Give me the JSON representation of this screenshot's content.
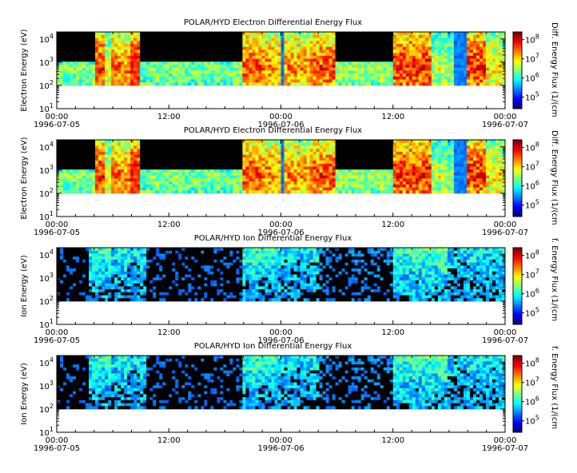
{
  "chart_data": [
    {
      "type": "heatmap",
      "title": "POLAR/HYD  Electron Differential Energy Flux",
      "ylabel": "Electron Energy (eV)",
      "colorbar_label": "Diff. Energy Flux (1/(cm",
      "species": "electron",
      "y_scale": "log",
      "ylim": [
        10,
        20000
      ],
      "data_ylim": [
        100,
        20000
      ],
      "y_ticks": [
        {
          "base": "10",
          "exp": "1"
        },
        {
          "base": "10",
          "exp": "2"
        },
        {
          "base": "10",
          "exp": "3"
        },
        {
          "base": "10",
          "exp": "4"
        }
      ],
      "cbar_scale": "log",
      "cbar_ticks": [
        {
          "base": "10",
          "exp": "5"
        },
        {
          "base": "10",
          "exp": "6"
        },
        {
          "base": "10",
          "exp": "7"
        },
        {
          "base": "10",
          "exp": "8"
        }
      ],
      "x_ticks": [
        "00:00",
        "12:00",
        "00:00",
        "12:00",
        "00:00"
      ],
      "x_dates": [
        "1996-07-05",
        "1996-07-06",
        "1996-07-07"
      ],
      "xlim_hours": [
        0,
        48
      ],
      "activity": [
        {
          "start": 0,
          "end": 4,
          "level": 0.42
        },
        {
          "start": 4,
          "end": 5,
          "level": 0.85
        },
        {
          "start": 5,
          "end": 6,
          "level": 0.55
        },
        {
          "start": 6,
          "end": 8,
          "level": 0.75
        },
        {
          "start": 8,
          "end": 9,
          "level": 0.9
        },
        {
          "start": 9,
          "end": 20,
          "level": 0.4
        },
        {
          "start": 20,
          "end": 22,
          "level": 0.8
        },
        {
          "start": 22,
          "end": 27,
          "level": 0.72
        },
        {
          "start": 27,
          "end": 30,
          "level": 0.8
        },
        {
          "start": 30,
          "end": 36,
          "level": 0.45
        },
        {
          "start": 36,
          "end": 40,
          "level": 0.85
        },
        {
          "start": 40,
          "end": 44,
          "level": 0.5
        },
        {
          "start": 44,
          "end": 46,
          "level": 0.85
        },
        {
          "start": 46,
          "end": 48,
          "level": 0.6
        }
      ],
      "gaps": [
        {
          "start": 7.1,
          "end": 7.3
        },
        {
          "start": 24,
          "end": 24.3
        },
        {
          "start": 42.5,
          "end": 43.8
        }
      ]
    },
    {
      "type": "heatmap",
      "title": "POLAR/HYD  Electron Differential Energy Flux",
      "ylabel": "Electron Energy (eV)",
      "colorbar_label": "Diff. Energy Flux (1/(cm",
      "species": "electron",
      "y_scale": "log",
      "ylim": [
        10,
        20000
      ],
      "data_ylim": [
        100,
        20000
      ],
      "y_ticks": [
        {
          "base": "10",
          "exp": "1"
        },
        {
          "base": "10",
          "exp": "2"
        },
        {
          "base": "10",
          "exp": "3"
        },
        {
          "base": "10",
          "exp": "4"
        }
      ],
      "cbar_scale": "log",
      "cbar_ticks": [
        {
          "base": "10",
          "exp": "5"
        },
        {
          "base": "10",
          "exp": "6"
        },
        {
          "base": "10",
          "exp": "7"
        },
        {
          "base": "10",
          "exp": "8"
        }
      ],
      "x_ticks": [
        "00:00",
        "12:00",
        "00:00",
        "12:00",
        "00:00"
      ],
      "x_dates": [
        "1996-07-05",
        "1996-07-06",
        "1996-07-07"
      ],
      "xlim_hours": [
        0,
        48
      ],
      "activity": [
        {
          "start": 0,
          "end": 4,
          "level": 0.42
        },
        {
          "start": 4,
          "end": 5,
          "level": 0.85
        },
        {
          "start": 5,
          "end": 6,
          "level": 0.55
        },
        {
          "start": 6,
          "end": 8,
          "level": 0.75
        },
        {
          "start": 8,
          "end": 9,
          "level": 0.9
        },
        {
          "start": 9,
          "end": 20,
          "level": 0.4
        },
        {
          "start": 20,
          "end": 22,
          "level": 0.8
        },
        {
          "start": 22,
          "end": 27,
          "level": 0.72
        },
        {
          "start": 27,
          "end": 30,
          "level": 0.8
        },
        {
          "start": 30,
          "end": 36,
          "level": 0.45
        },
        {
          "start": 36,
          "end": 40,
          "level": 0.85
        },
        {
          "start": 40,
          "end": 44,
          "level": 0.5
        },
        {
          "start": 44,
          "end": 46,
          "level": 0.85
        },
        {
          "start": 46,
          "end": 48,
          "level": 0.6
        }
      ],
      "gaps": [
        {
          "start": 7.1,
          "end": 7.3
        },
        {
          "start": 24,
          "end": 24.3
        },
        {
          "start": 42.5,
          "end": 43.8
        }
      ]
    },
    {
      "type": "heatmap",
      "title": "POLAR/HYD  Ion Differential Energy Flux",
      "ylabel": "Ion Energy (eV)",
      "colorbar_label": "f. Energy Flux (1/(cm",
      "species": "ion",
      "y_scale": "log",
      "ylim": [
        10,
        20000
      ],
      "data_ylim": [
        100,
        20000
      ],
      "y_ticks": [
        {
          "base": "10",
          "exp": "1"
        },
        {
          "base": "10",
          "exp": "2"
        },
        {
          "base": "10",
          "exp": "3"
        },
        {
          "base": "10",
          "exp": "4"
        }
      ],
      "cbar_scale": "log",
      "cbar_ticks": [
        {
          "base": "10",
          "exp": "5"
        },
        {
          "base": "10",
          "exp": "6"
        },
        {
          "base": "10",
          "exp": "7"
        },
        {
          "base": "10",
          "exp": "8"
        }
      ],
      "x_ticks": [
        "00:00",
        "12:00",
        "00:00",
        "12:00",
        "00:00"
      ],
      "x_dates": [
        "1996-07-05",
        "1996-07-06",
        "1996-07-07"
      ],
      "xlim_hours": [
        0,
        48
      ],
      "activity": [
        {
          "start": 0,
          "end": 3.5,
          "level": 0.0
        },
        {
          "start": 3.5,
          "end": 6,
          "level": 0.35
        },
        {
          "start": 6,
          "end": 9.5,
          "level": 0.3
        },
        {
          "start": 9.5,
          "end": 20,
          "level": 0.02
        },
        {
          "start": 20,
          "end": 24,
          "level": 0.35
        },
        {
          "start": 24,
          "end": 28,
          "level": 0.28
        },
        {
          "start": 28,
          "end": 36,
          "level": 0.08
        },
        {
          "start": 36,
          "end": 42,
          "level": 0.4
        },
        {
          "start": 42,
          "end": 44,
          "level": 0.25
        },
        {
          "start": 44,
          "end": 48,
          "level": 0.3
        }
      ],
      "gaps": []
    },
    {
      "type": "heatmap",
      "title": "POLAR/HYD  Ion Differential Energy Flux",
      "ylabel": "Ion Energy (eV)",
      "colorbar_label": "f. Energy Flux (1/(cm",
      "species": "ion",
      "y_scale": "log",
      "ylim": [
        10,
        20000
      ],
      "data_ylim": [
        100,
        20000
      ],
      "y_ticks": [
        {
          "base": "10",
          "exp": "1"
        },
        {
          "base": "10",
          "exp": "2"
        },
        {
          "base": "10",
          "exp": "3"
        },
        {
          "base": "10",
          "exp": "4"
        }
      ],
      "cbar_scale": "log",
      "cbar_ticks": [
        {
          "base": "10",
          "exp": "5"
        },
        {
          "base": "10",
          "exp": "6"
        },
        {
          "base": "10",
          "exp": "7"
        },
        {
          "base": "10",
          "exp": "8"
        }
      ],
      "x_ticks": [
        "00:00",
        "12:00",
        "00:00",
        "12:00",
        "00:00"
      ],
      "x_dates": [
        "1996-07-05",
        "1996-07-06",
        "1996-07-07"
      ],
      "xlim_hours": [
        0,
        48
      ],
      "activity": [
        {
          "start": 0,
          "end": 3.5,
          "level": 0.0
        },
        {
          "start": 3.5,
          "end": 6,
          "level": 0.35
        },
        {
          "start": 6,
          "end": 9.5,
          "level": 0.3
        },
        {
          "start": 9.5,
          "end": 20,
          "level": 0.02
        },
        {
          "start": 20,
          "end": 24,
          "level": 0.35
        },
        {
          "start": 24,
          "end": 28,
          "level": 0.28
        },
        {
          "start": 28,
          "end": 36,
          "level": 0.08
        },
        {
          "start": 36,
          "end": 42,
          "level": 0.4
        },
        {
          "start": 42,
          "end": 44,
          "level": 0.25
        },
        {
          "start": 44,
          "end": 48,
          "level": 0.3
        }
      ],
      "gaps": []
    }
  ]
}
